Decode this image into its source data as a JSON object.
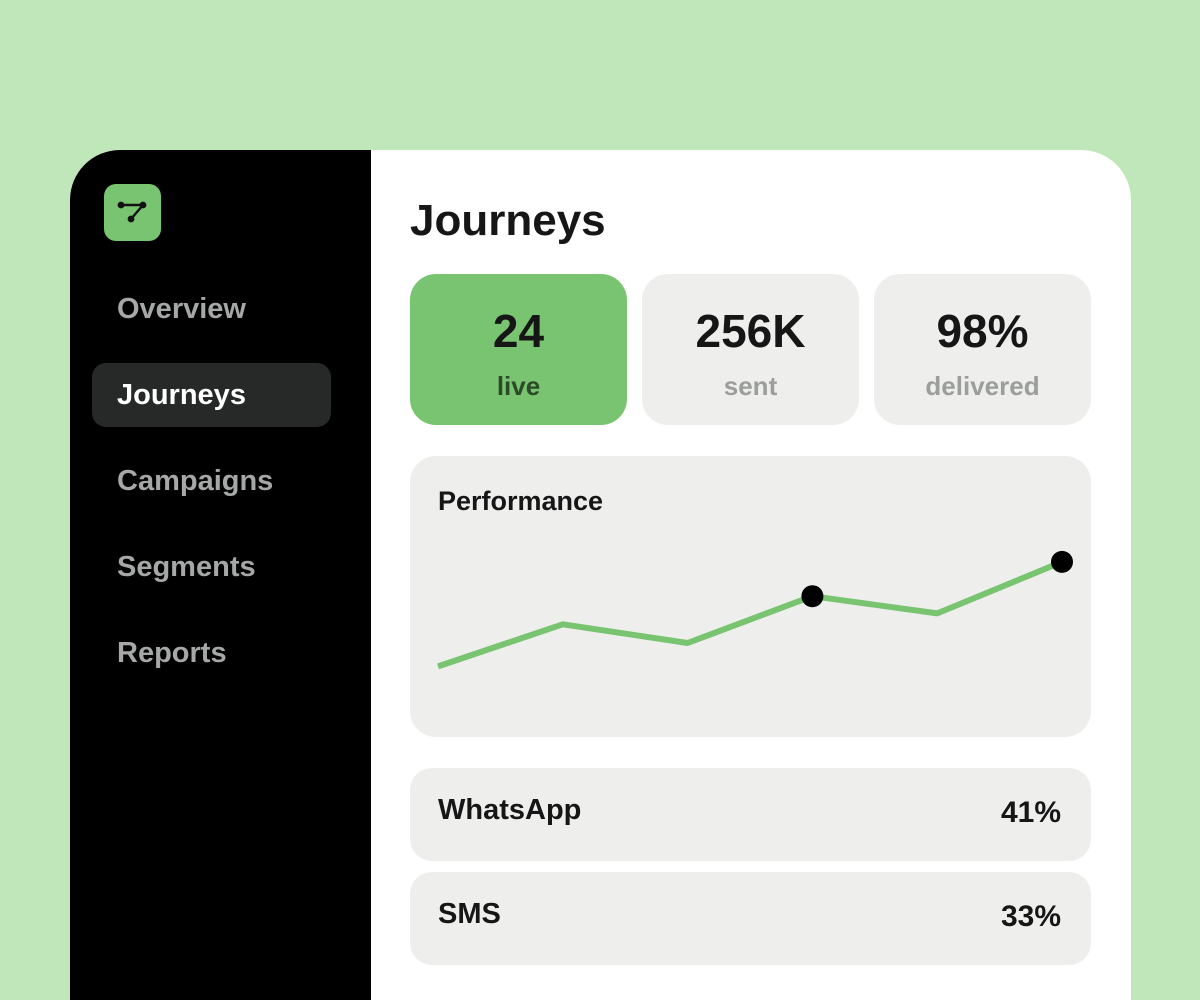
{
  "logo_icon": "journey-graph-icon",
  "sidebar": {
    "items": [
      {
        "label": "Overview",
        "active": false
      },
      {
        "label": "Journeys",
        "active": true
      },
      {
        "label": "Campaigns",
        "active": false
      },
      {
        "label": "Segments",
        "active": false
      },
      {
        "label": "Reports",
        "active": false
      }
    ]
  },
  "main": {
    "title": "Journeys",
    "stats": [
      {
        "value": "24",
        "label": "live"
      },
      {
        "value": "256K",
        "label": "sent"
      },
      {
        "value": "98%",
        "label": "delivered"
      }
    ],
    "performance": {
      "title": "Performance"
    },
    "channels": [
      {
        "name": "WhatsApp",
        "share": "41%"
      },
      {
        "name": "SMS",
        "share": "33%"
      }
    ]
  },
  "colors": {
    "background": "#c0e7b9",
    "accent": "#79c470",
    "sidebar": "#000000",
    "active_nav": "#262927",
    "card": "#eeefed"
  },
  "chart_data": {
    "type": "line",
    "title": "Performance",
    "xlabel": "",
    "ylabel": "",
    "x": [
      1,
      2,
      3,
      4,
      5,
      6
    ],
    "series": [
      {
        "values": [
          10,
          37,
          25,
          55,
          44,
          77
        ],
        "highlighted_points": [
          3,
          5
        ]
      }
    ],
    "ylim": [
      0,
      100
    ],
    "grid": false,
    "axes_visible": false
  }
}
